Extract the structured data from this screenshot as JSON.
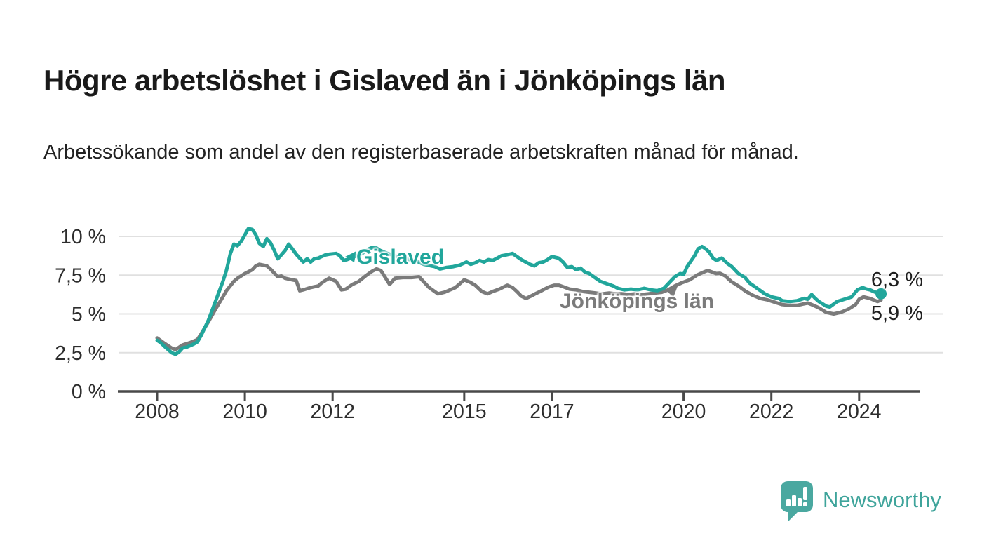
{
  "header": {
    "title": "Högre arbetslöshet i Gislaved än i Jönköpings län",
    "subtitle": "Arbetssökande som andel av den registerbaserade arbetskraften månad för månad."
  },
  "chart_data": {
    "type": "line",
    "unit": "%",
    "grid": true,
    "legend_position": "inline-labels",
    "x_axis": {
      "tick_values": [
        2008,
        2010,
        2012,
        2015,
        2017,
        2020,
        2022,
        2024
      ],
      "tick_labels": [
        "2008",
        "2010",
        "2012",
        "2015",
        "2017",
        "2020",
        "2022",
        "2024"
      ],
      "range": [
        2008,
        2024.5
      ]
    },
    "y_axis": {
      "tick_values": [
        0,
        2.5,
        5,
        7.5,
        10
      ],
      "tick_labels": [
        "0 %",
        "2,5 %",
        "5 %",
        "7,5 %",
        "10 %"
      ],
      "range": [
        0,
        10.6
      ]
    },
    "series": [
      {
        "name": "Jönköpings län",
        "color": "#7b7b7b",
        "end_label": "5,9 %",
        "end_value": 5.9,
        "end_dot": false,
        "points": [
          [
            2008.0,
            3.45
          ],
          [
            2008.17,
            3.1
          ],
          [
            2008.33,
            2.8
          ],
          [
            2008.42,
            2.7
          ],
          [
            2008.58,
            3.0
          ],
          [
            2008.75,
            3.15
          ],
          [
            2008.92,
            3.35
          ],
          [
            2009.0,
            3.7
          ],
          [
            2009.17,
            4.5
          ],
          [
            2009.33,
            5.3
          ],
          [
            2009.5,
            6.1
          ],
          [
            2009.58,
            6.5
          ],
          [
            2009.75,
            7.1
          ],
          [
            2009.83,
            7.3
          ],
          [
            2010.0,
            7.6
          ],
          [
            2010.17,
            7.85
          ],
          [
            2010.25,
            8.1
          ],
          [
            2010.33,
            8.2
          ],
          [
            2010.5,
            8.1
          ],
          [
            2010.58,
            7.9
          ],
          [
            2010.75,
            7.4
          ],
          [
            2010.83,
            7.45
          ],
          [
            2010.92,
            7.3
          ],
          [
            2011.0,
            7.25
          ],
          [
            2011.08,
            7.2
          ],
          [
            2011.17,
            7.15
          ],
          [
            2011.25,
            6.5
          ],
          [
            2011.33,
            6.55
          ],
          [
            2011.5,
            6.7
          ],
          [
            2011.58,
            6.75
          ],
          [
            2011.67,
            6.8
          ],
          [
            2011.75,
            7.0
          ],
          [
            2011.83,
            7.15
          ],
          [
            2011.92,
            7.3
          ],
          [
            2012.08,
            7.1
          ],
          [
            2012.2,
            6.55
          ],
          [
            2012.3,
            6.6
          ],
          [
            2012.45,
            6.9
          ],
          [
            2012.6,
            7.1
          ],
          [
            2012.75,
            7.45
          ],
          [
            2012.9,
            7.75
          ],
          [
            2013.0,
            7.9
          ],
          [
            2013.1,
            7.8
          ],
          [
            2013.3,
            6.9
          ],
          [
            2013.42,
            7.3
          ],
          [
            2013.6,
            7.35
          ],
          [
            2013.8,
            7.35
          ],
          [
            2013.97,
            7.4
          ],
          [
            2014.2,
            6.7
          ],
          [
            2014.4,
            6.3
          ],
          [
            2014.55,
            6.4
          ],
          [
            2014.8,
            6.7
          ],
          [
            2015.0,
            7.2
          ],
          [
            2015.13,
            7.05
          ],
          [
            2015.25,
            6.85
          ],
          [
            2015.4,
            6.45
          ],
          [
            2015.53,
            6.3
          ],
          [
            2015.65,
            6.45
          ],
          [
            2015.8,
            6.6
          ],
          [
            2015.98,
            6.85
          ],
          [
            2016.1,
            6.7
          ],
          [
            2016.2,
            6.45
          ],
          [
            2016.3,
            6.15
          ],
          [
            2016.41,
            6.0
          ],
          [
            2016.52,
            6.15
          ],
          [
            2016.62,
            6.3
          ],
          [
            2016.73,
            6.45
          ],
          [
            2016.83,
            6.6
          ],
          [
            2016.94,
            6.75
          ],
          [
            2017.05,
            6.85
          ],
          [
            2017.16,
            6.85
          ],
          [
            2017.26,
            6.75
          ],
          [
            2017.4,
            6.6
          ],
          [
            2017.55,
            6.55
          ],
          [
            2017.7,
            6.45
          ],
          [
            2017.85,
            6.4
          ],
          [
            2018.0,
            6.35
          ],
          [
            2018.15,
            6.3
          ],
          [
            2018.3,
            6.35
          ],
          [
            2018.45,
            6.3
          ],
          [
            2018.6,
            6.3
          ],
          [
            2018.75,
            6.25
          ],
          [
            2018.9,
            6.3
          ],
          [
            2019.05,
            6.25
          ],
          [
            2019.2,
            6.3
          ],
          [
            2019.35,
            6.35
          ],
          [
            2019.5,
            6.4
          ],
          [
            2019.65,
            6.55
          ],
          [
            2019.8,
            6.8
          ],
          [
            2019.95,
            7.0
          ],
          [
            2020.14,
            7.2
          ],
          [
            2020.3,
            7.5
          ],
          [
            2020.46,
            7.7
          ],
          [
            2020.55,
            7.8
          ],
          [
            2020.65,
            7.7
          ],
          [
            2020.74,
            7.6
          ],
          [
            2020.83,
            7.62
          ],
          [
            2020.95,
            7.45
          ],
          [
            2021.08,
            7.1
          ],
          [
            2021.25,
            6.8
          ],
          [
            2021.42,
            6.45
          ],
          [
            2021.58,
            6.2
          ],
          [
            2021.75,
            6.0
          ],
          [
            2021.92,
            5.9
          ],
          [
            2022.08,
            5.75
          ],
          [
            2022.25,
            5.6
          ],
          [
            2022.42,
            5.55
          ],
          [
            2022.58,
            5.55
          ],
          [
            2022.75,
            5.65
          ],
          [
            2022.83,
            5.7
          ],
          [
            2022.92,
            5.6
          ],
          [
            2023.08,
            5.4
          ],
          [
            2023.25,
            5.1
          ],
          [
            2023.42,
            5.0
          ],
          [
            2023.58,
            5.1
          ],
          [
            2023.75,
            5.3
          ],
          [
            2023.92,
            5.6
          ],
          [
            2024.0,
            5.95
          ],
          [
            2024.1,
            6.1
          ],
          [
            2024.25,
            6.0
          ],
          [
            2024.33,
            5.9
          ],
          [
            2024.42,
            5.8
          ],
          [
            2024.5,
            5.9
          ]
        ]
      },
      {
        "name": "Gislaved",
        "color": "#21a69b",
        "end_label": "6,3 %",
        "end_value": 6.3,
        "end_dot": true,
        "points": [
          [
            2008.0,
            3.3
          ],
          [
            2008.08,
            3.15
          ],
          [
            2008.17,
            2.9
          ],
          [
            2008.33,
            2.5
          ],
          [
            2008.42,
            2.4
          ],
          [
            2008.5,
            2.55
          ],
          [
            2008.58,
            2.8
          ],
          [
            2008.67,
            2.85
          ],
          [
            2008.83,
            3.05
          ],
          [
            2008.92,
            3.2
          ],
          [
            2009.0,
            3.6
          ],
          [
            2009.17,
            4.6
          ],
          [
            2009.33,
            5.8
          ],
          [
            2009.5,
            7.1
          ],
          [
            2009.58,
            7.8
          ],
          [
            2009.67,
            8.9
          ],
          [
            2009.75,
            9.5
          ],
          [
            2009.83,
            9.4
          ],
          [
            2009.92,
            9.7
          ],
          [
            2010.0,
            10.1
          ],
          [
            2010.08,
            10.5
          ],
          [
            2010.17,
            10.45
          ],
          [
            2010.25,
            10.1
          ],
          [
            2010.33,
            9.55
          ],
          [
            2010.42,
            9.35
          ],
          [
            2010.5,
            9.85
          ],
          [
            2010.58,
            9.6
          ],
          [
            2010.67,
            9.1
          ],
          [
            2010.75,
            8.55
          ],
          [
            2010.83,
            8.8
          ],
          [
            2010.92,
            9.1
          ],
          [
            2011.0,
            9.5
          ],
          [
            2011.08,
            9.2
          ],
          [
            2011.17,
            8.85
          ],
          [
            2011.33,
            8.35
          ],
          [
            2011.42,
            8.55
          ],
          [
            2011.5,
            8.35
          ],
          [
            2011.58,
            8.55
          ],
          [
            2011.67,
            8.6
          ],
          [
            2011.83,
            8.8
          ],
          [
            2011.92,
            8.85
          ],
          [
            2012.08,
            8.9
          ],
          [
            2012.17,
            8.75
          ],
          [
            2012.25,
            8.45
          ],
          [
            2012.33,
            8.5
          ],
          [
            2012.5,
            8.7
          ],
          [
            2012.67,
            8.9
          ],
          [
            2012.83,
            9.2
          ],
          [
            2012.92,
            9.3
          ],
          [
            2013.0,
            9.25
          ],
          [
            2013.08,
            9.1
          ],
          [
            2013.25,
            8.9
          ],
          [
            2013.42,
            8.75
          ],
          [
            2013.58,
            8.6
          ],
          [
            2013.75,
            8.5
          ],
          [
            2013.92,
            8.4
          ],
          [
            2014.08,
            8.2
          ],
          [
            2014.25,
            8.1
          ],
          [
            2014.33,
            8.05
          ],
          [
            2014.45,
            7.9
          ],
          [
            2014.6,
            8.0
          ],
          [
            2014.75,
            8.05
          ],
          [
            2014.9,
            8.15
          ],
          [
            2015.05,
            8.35
          ],
          [
            2015.15,
            8.2
          ],
          [
            2015.25,
            8.3
          ],
          [
            2015.35,
            8.45
          ],
          [
            2015.45,
            8.35
          ],
          [
            2015.55,
            8.5
          ],
          [
            2015.65,
            8.45
          ],
          [
            2015.75,
            8.6
          ],
          [
            2015.85,
            8.75
          ],
          [
            2015.95,
            8.8
          ],
          [
            2016.1,
            8.9
          ],
          [
            2016.2,
            8.7
          ],
          [
            2016.3,
            8.5
          ],
          [
            2016.4,
            8.35
          ],
          [
            2016.5,
            8.2
          ],
          [
            2016.6,
            8.1
          ],
          [
            2016.7,
            8.3
          ],
          [
            2016.8,
            8.35
          ],
          [
            2016.9,
            8.5
          ],
          [
            2017.0,
            8.7
          ],
          [
            2017.15,
            8.6
          ],
          [
            2017.25,
            8.35
          ],
          [
            2017.35,
            8.0
          ],
          [
            2017.45,
            8.05
          ],
          [
            2017.55,
            7.85
          ],
          [
            2017.65,
            7.95
          ],
          [
            2017.75,
            7.7
          ],
          [
            2017.85,
            7.6
          ],
          [
            2018.0,
            7.3
          ],
          [
            2018.1,
            7.1
          ],
          [
            2018.25,
            6.95
          ],
          [
            2018.4,
            6.8
          ],
          [
            2018.5,
            6.65
          ],
          [
            2018.65,
            6.55
          ],
          [
            2018.8,
            6.6
          ],
          [
            2018.95,
            6.55
          ],
          [
            2019.1,
            6.65
          ],
          [
            2019.25,
            6.55
          ],
          [
            2019.4,
            6.5
          ],
          [
            2019.55,
            6.65
          ],
          [
            2019.7,
            7.1
          ],
          [
            2019.8,
            7.4
          ],
          [
            2019.92,
            7.6
          ],
          [
            2020.0,
            7.55
          ],
          [
            2020.08,
            8.05
          ],
          [
            2020.25,
            8.75
          ],
          [
            2020.33,
            9.2
          ],
          [
            2020.42,
            9.35
          ],
          [
            2020.5,
            9.2
          ],
          [
            2020.58,
            9.0
          ],
          [
            2020.67,
            8.6
          ],
          [
            2020.75,
            8.45
          ],
          [
            2020.87,
            8.6
          ],
          [
            2021.0,
            8.25
          ],
          [
            2021.1,
            8.05
          ],
          [
            2021.25,
            7.6
          ],
          [
            2021.4,
            7.35
          ],
          [
            2021.5,
            7.0
          ],
          [
            2021.6,
            6.8
          ],
          [
            2021.7,
            6.6
          ],
          [
            2021.85,
            6.3
          ],
          [
            2022.0,
            6.1
          ],
          [
            2022.17,
            6.0
          ],
          [
            2022.25,
            5.85
          ],
          [
            2022.42,
            5.8
          ],
          [
            2022.58,
            5.85
          ],
          [
            2022.75,
            6.0
          ],
          [
            2022.83,
            5.95
          ],
          [
            2022.92,
            6.25
          ],
          [
            2023.0,
            6.0
          ],
          [
            2023.08,
            5.8
          ],
          [
            2023.25,
            5.5
          ],
          [
            2023.33,
            5.45
          ],
          [
            2023.5,
            5.8
          ],
          [
            2023.67,
            5.95
          ],
          [
            2023.83,
            6.1
          ],
          [
            2023.96,
            6.55
          ],
          [
            2024.08,
            6.7
          ],
          [
            2024.17,
            6.6
          ],
          [
            2024.25,
            6.55
          ],
          [
            2024.33,
            6.45
          ],
          [
            2024.42,
            6.35
          ],
          [
            2024.5,
            6.3
          ]
        ]
      }
    ]
  },
  "branding": {
    "logo_text": "Newsworthy",
    "logo_icon": "newsworthy-speech-bubble-bar-chart-icon",
    "logo_color": "#4aa8a0",
    "logo_text_color": "#3fa49b"
  },
  "colors": {
    "gislaved_line": "#21a69b",
    "jonkoping_line": "#7b7b7b",
    "gridline": "#e0e0e0",
    "axis": "#494949",
    "tick_text": "#2d2d2d",
    "title_text": "#1a1a1a"
  }
}
